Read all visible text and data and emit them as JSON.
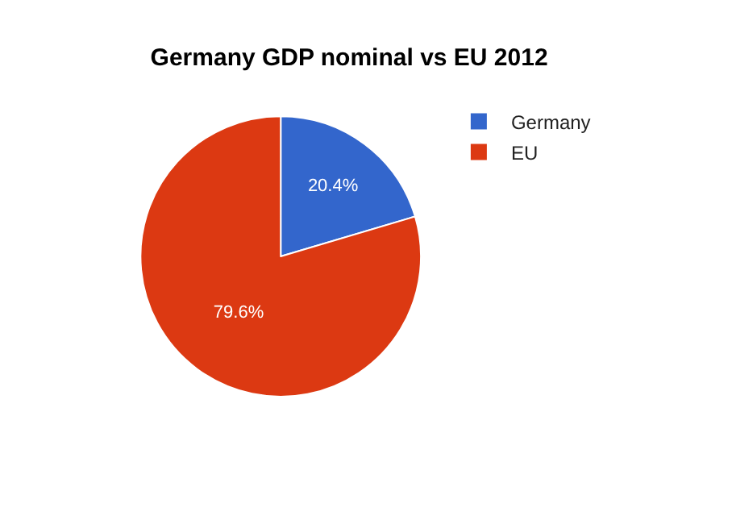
{
  "chart_data": {
    "type": "pie",
    "title": "Germany GDP nominal vs EU 2012",
    "categories": [
      "Germany",
      "EU"
    ],
    "values": [
      20.4,
      79.6
    ],
    "colors": [
      "#3366cc",
      "#dc3912"
    ],
    "value_labels": [
      "20.4%",
      "79.6%"
    ],
    "legend": "top right"
  }
}
